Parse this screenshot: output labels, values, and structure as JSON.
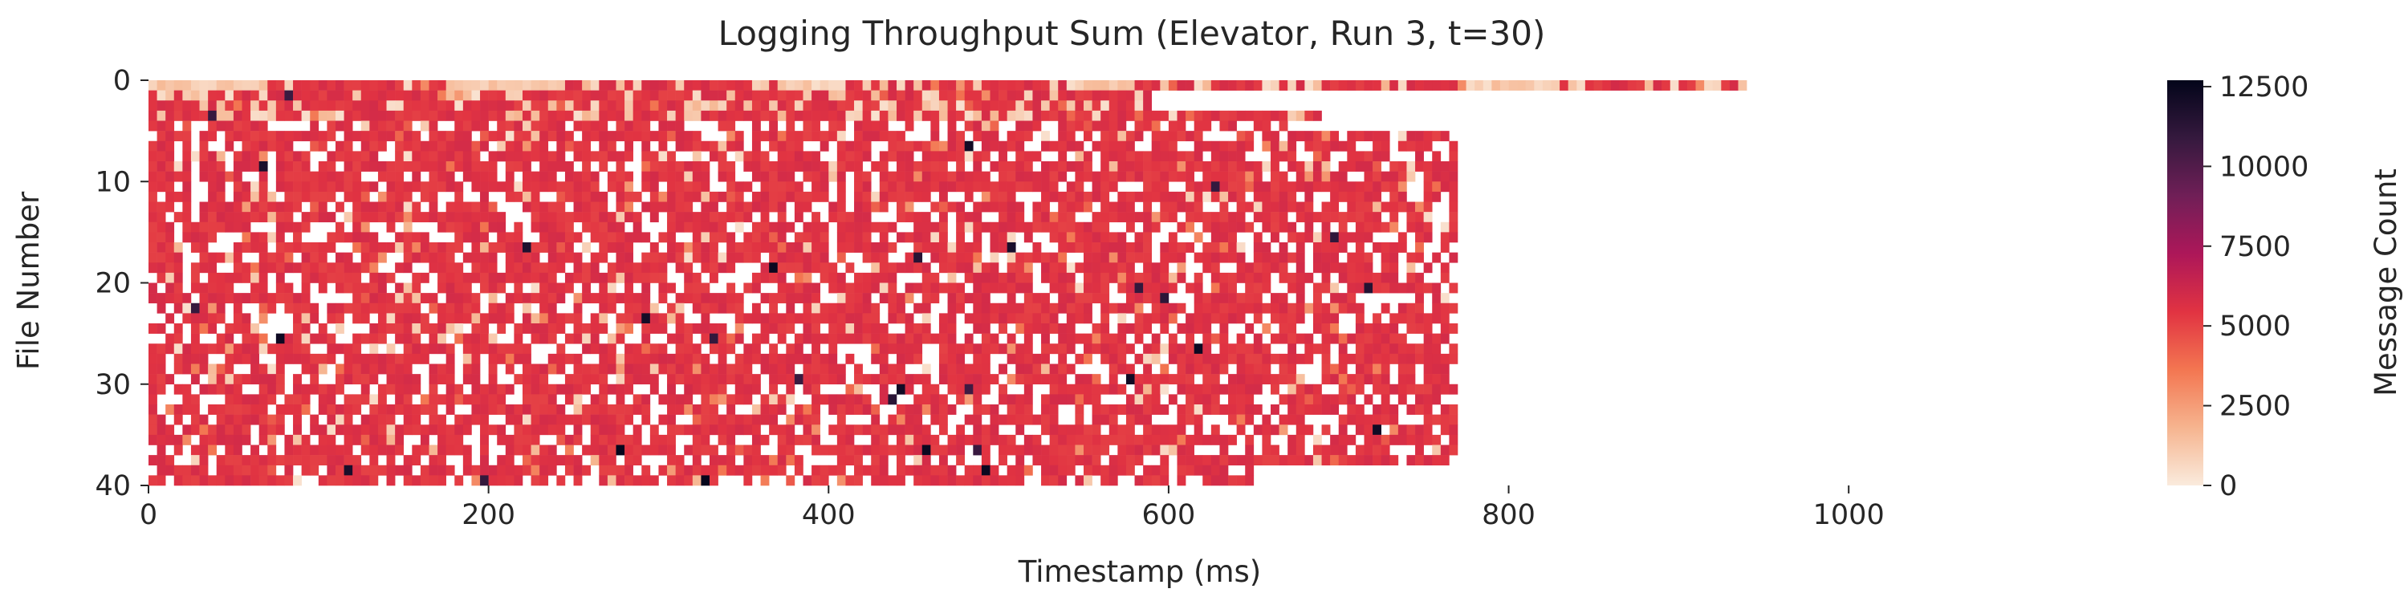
{
  "chart_data": {
    "type": "heatmap",
    "title": "Logging Throughput Sum (Elevator, Run 3, t=30)",
    "xlabel": "Timestamp (ms)",
    "ylabel": "File Number",
    "colorbar_label": "Message Count",
    "xlim": [
      0,
      1100
    ],
    "ylim": [
      0,
      40
    ],
    "x_ticks": [
      0,
      200,
      400,
      600,
      800,
      1000
    ],
    "y_ticks": [
      0,
      10,
      20,
      30,
      40
    ],
    "colorbar_ticks": [
      0,
      2500,
      5000,
      7500,
      10000,
      12500
    ],
    "value_range": [
      0,
      12700
    ],
    "colormap": "rocket_r",
    "colormap_colors": [
      "#faebdd",
      "#f6b48f",
      "#f37651",
      "#e13342",
      "#ad1759",
      "#701f57",
      "#35193e",
      "#03051a"
    ],
    "typical_value": 5500,
    "grid": false,
    "rows_last_timestamp_ms": [
      {
        "files": [
          0,
          0
        ],
        "end": 940
      },
      {
        "files": [
          1,
          1
        ],
        "end": 590
      },
      {
        "files": [
          2,
          2
        ],
        "end": 590
      },
      {
        "files": [
          3,
          3
        ],
        "end": 690
      },
      {
        "files": [
          4,
          4
        ],
        "end": 670
      },
      {
        "files": [
          5,
          5
        ],
        "end": 770
      },
      {
        "files": [
          6,
          32
        ],
        "end": 770
      },
      {
        "files": [
          33,
          37
        ],
        "end": 770
      },
      {
        "files": [
          38,
          40
        ],
        "end": 650
      }
    ],
    "low_activity_segments_file0": [
      [
        0,
        70
      ],
      [
        175,
        240
      ],
      [
        370,
        410
      ],
      [
        540,
        580
      ],
      [
        780,
        830
      ]
    ]
  }
}
